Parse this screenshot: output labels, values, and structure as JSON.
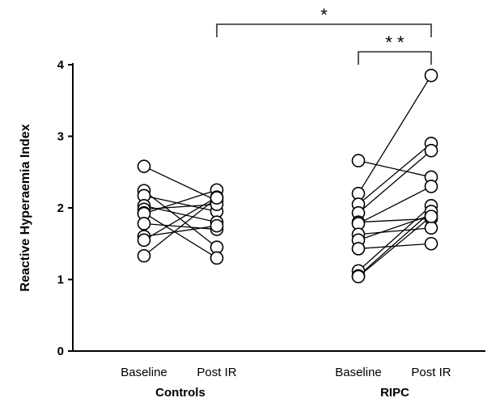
{
  "chart_data": {
    "type": "scatter",
    "ylabel": "Reactive Hyperaemia Index",
    "ylim": [
      0,
      4
    ],
    "yticks": [
      0,
      1,
      2,
      3,
      4
    ],
    "conditions": [
      "Baseline",
      "Post IR"
    ],
    "groups": [
      {
        "name": "Controls",
        "pairs": [
          [
            2.58,
            2.1
          ],
          [
            2.24,
            1.45
          ],
          [
            2.17,
            1.95
          ],
          [
            2.03,
            1.8
          ],
          [
            1.98,
            2.05
          ],
          [
            1.93,
            1.3
          ],
          [
            1.92,
            2.25
          ],
          [
            1.78,
            1.7
          ],
          [
            1.6,
            1.75
          ],
          [
            1.55,
            2.15
          ],
          [
            1.33,
            2.14
          ]
        ]
      },
      {
        "name": "RIPC",
        "pairs": [
          [
            2.66,
            2.43
          ],
          [
            2.2,
            3.85
          ],
          [
            2.05,
            2.9
          ],
          [
            1.93,
            2.8
          ],
          [
            1.8,
            1.85
          ],
          [
            1.78,
            2.3
          ],
          [
            1.63,
            1.72
          ],
          [
            1.55,
            1.9
          ],
          [
            1.43,
            1.5
          ],
          [
            1.12,
            2.03
          ],
          [
            1.05,
            1.95
          ],
          [
            1.04,
            1.88
          ]
        ]
      }
    ],
    "significance": [
      {
        "label": "*",
        "from": "Controls Post IR",
        "to": "RIPC Post IR"
      },
      {
        "label": "* *",
        "from": "RIPC Baseline",
        "to": "RIPC Post IR"
      }
    ]
  }
}
